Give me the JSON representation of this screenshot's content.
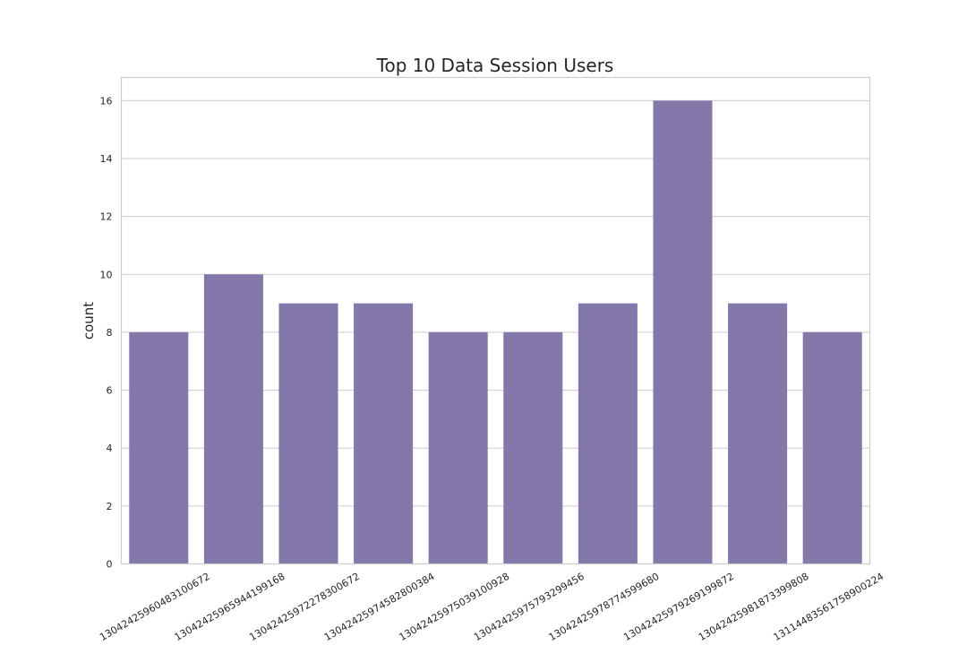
{
  "chart_data": {
    "type": "bar",
    "title": "Top 10 Data Session Users",
    "xlabel": "",
    "ylabel": "count",
    "ylim": [
      0,
      16.8
    ],
    "yticks": [
      0,
      2,
      4,
      6,
      8,
      10,
      12,
      14,
      16
    ],
    "grid": true,
    "bar_color": "#8478ab",
    "categories": [
      "13042425960483100672",
      "13042425965944199168",
      "13042425972278300672",
      "13042425974582800384",
      "13042425975039100928",
      "13042425975793299456",
      "13042425978774599680",
      "13042425979269199872",
      "13042425981873399808",
      "13114483561758900224"
    ],
    "values": [
      8,
      10,
      9,
      9,
      8,
      8,
      9,
      16,
      9,
      8
    ]
  }
}
